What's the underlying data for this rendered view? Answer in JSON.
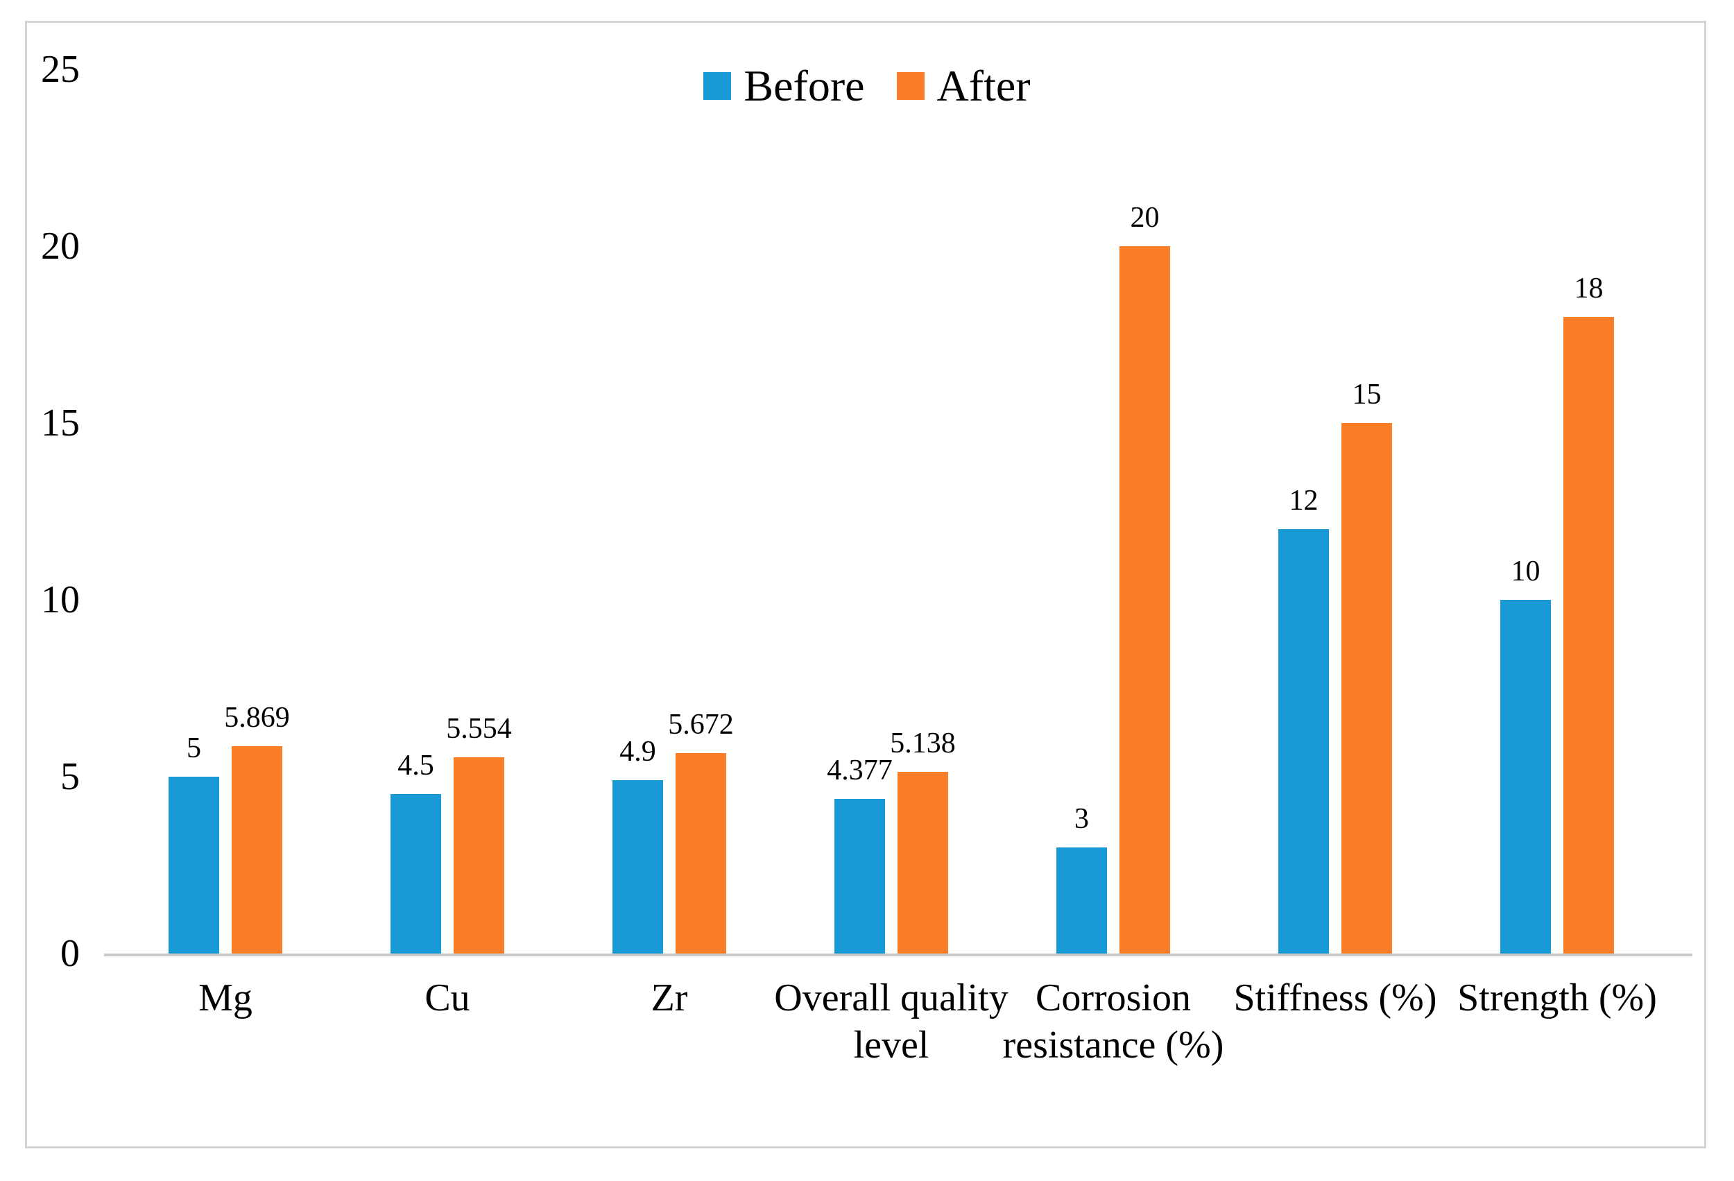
{
  "chart_data": {
    "type": "bar",
    "categories": [
      "Mg",
      "Cu",
      "Zr",
      "Overall quality level",
      "Corrosion resistance (%)",
      "Stiffness (%)",
      "Strength (%)"
    ],
    "category_lines": [
      [
        "Mg"
      ],
      [
        "Cu"
      ],
      [
        "Zr"
      ],
      [
        "Overall quality",
        "level"
      ],
      [
        "Corrosion",
        "resistance (%)"
      ],
      [
        "Stiffness (%)"
      ],
      [
        "Strength (%)"
      ]
    ],
    "series": [
      {
        "name": "Before",
        "color": "#1999d5",
        "values": [
          5,
          4.5,
          4.9,
          4.377,
          3,
          12,
          10
        ],
        "labels": [
          "5",
          "4.5",
          "4.9",
          "4.377",
          "3",
          "12",
          "10"
        ]
      },
      {
        "name": "After",
        "color": "#f97e27",
        "values": [
          5.869,
          5.554,
          5.672,
          5.138,
          20,
          15,
          18
        ],
        "labels": [
          "5.869",
          "5.554",
          "5.672",
          "5.138",
          "20",
          "15",
          "18"
        ]
      }
    ],
    "yticks": [
      0,
      5,
      10,
      15,
      20,
      25
    ],
    "ylim": [
      0,
      25
    ],
    "grid": false,
    "legend_position": "top-center",
    "axis_color": "#c9c9c9",
    "border_color": "#d4d4d4",
    "text_color": "#000000"
  }
}
